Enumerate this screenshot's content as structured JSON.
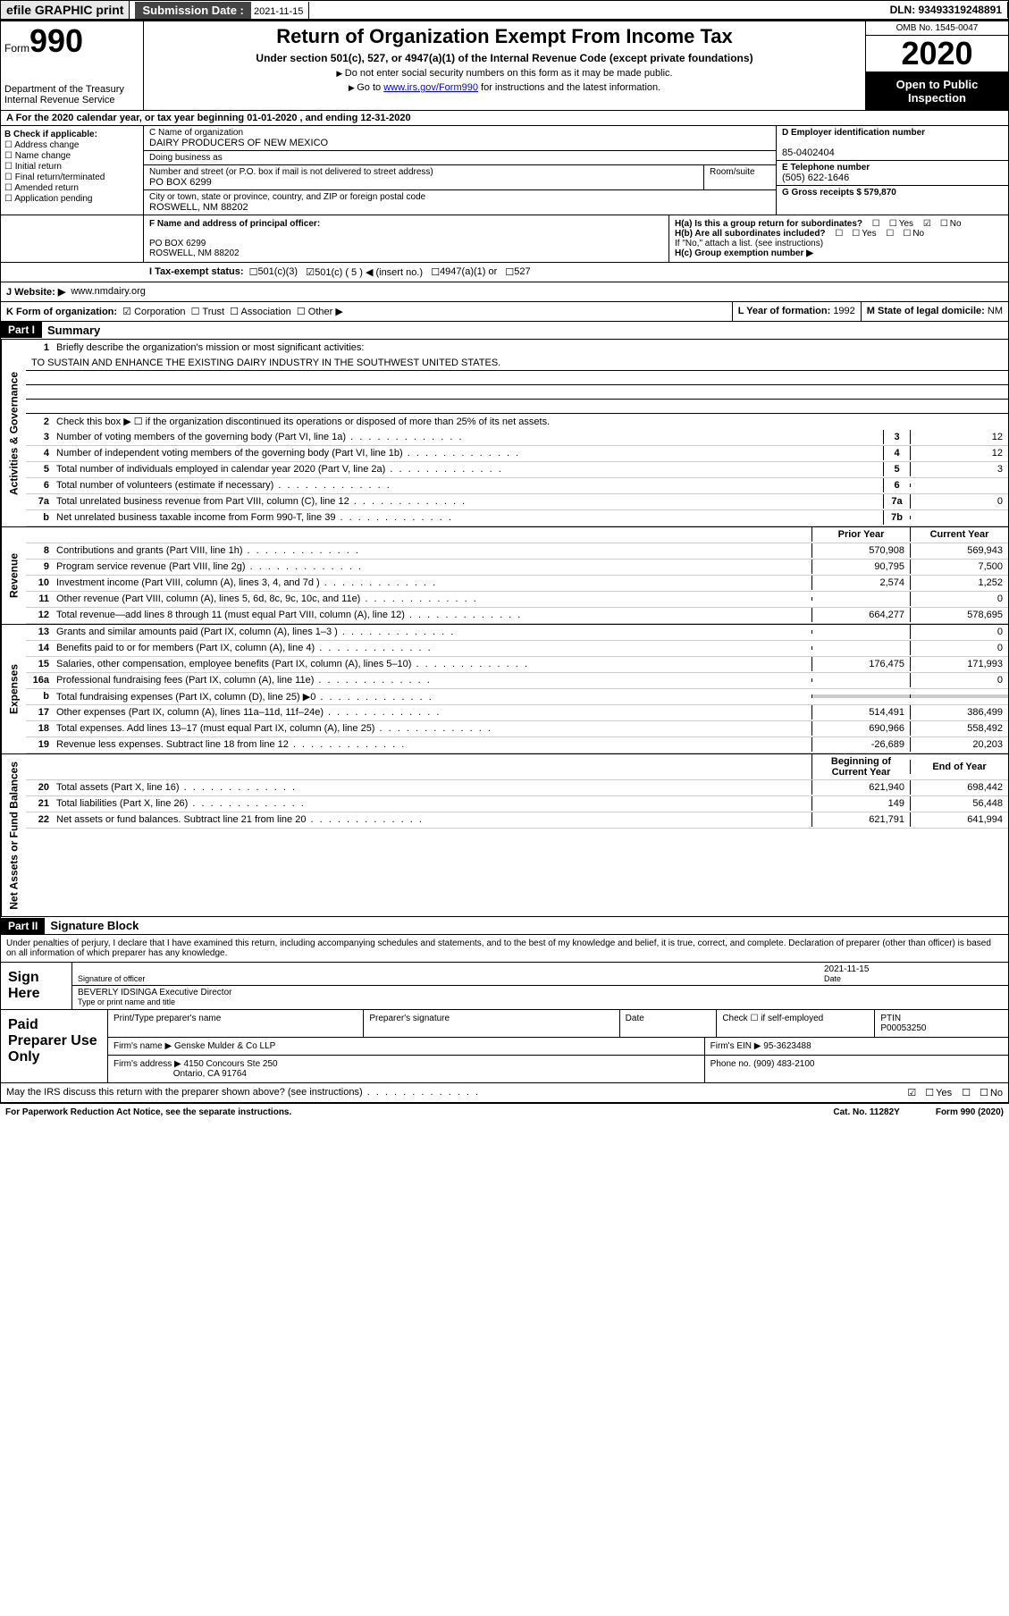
{
  "top": {
    "efile": "efile GRAPHIC print",
    "sub_label": "Submission Date :",
    "sub_date": "2021-11-15",
    "dln": "DLN: 93493319248891"
  },
  "header": {
    "form_word": "Form",
    "form_no": "990",
    "dept": "Department of the Treasury\nInternal Revenue Service",
    "title": "Return of Organization Exempt From Income Tax",
    "subtitle": "Under section 501(c), 527, or 4947(a)(1) of the Internal Revenue Code (except private foundations)",
    "hint1": "Do not enter social security numbers on this form as it may be made public.",
    "hint2_pre": "Go to ",
    "hint2_link": "www.irs.gov/Form990",
    "hint2_post": " for instructions and the latest information.",
    "omb": "OMB No. 1545-0047",
    "year": "2020",
    "open": "Open to Public Inspection"
  },
  "rowA": "A For the 2020 calendar year, or tax year beginning 01-01-2020   , and ending 12-31-2020",
  "B": {
    "label": "B Check if applicable:",
    "opts": [
      "Address change",
      "Name change",
      "Initial return",
      "Final return/terminated",
      "Amended return",
      "Application pending"
    ]
  },
  "C": {
    "name_label": "C Name of organization",
    "name": "DAIRY PRODUCERS OF NEW MEXICO",
    "dba_label": "Doing business as",
    "dba": "",
    "street_label": "Number and street (or P.O. box if mail is not delivered to street address)",
    "room_label": "Room/suite",
    "street": "PO BOX 6299",
    "city_label": "City or town, state or province, country, and ZIP or foreign postal code",
    "city": "ROSWELL, NM  88202"
  },
  "D": {
    "label": "D Employer identification number",
    "val": "85-0402404"
  },
  "E": {
    "label": "E Telephone number",
    "val": "(505) 622-1646"
  },
  "G": {
    "label": "G Gross receipts $",
    "val": "579,870"
  },
  "F": {
    "label": "F Name and address of principal officer:",
    "line1": "PO BOX 6299",
    "line2": "ROSWELL, NM  88202"
  },
  "H": {
    "a": "H(a)  Is this a group return for subordinates?",
    "b": "H(b)  Are all subordinates included?",
    "b_note": "If \"No,\" attach a list. (see instructions)",
    "c": "H(c)  Group exemption number ▶",
    "yes": "Yes",
    "no": "No"
  },
  "I": {
    "label": "I Tax-exempt status:",
    "o1": "501(c)(3)",
    "o2": "501(c) ( 5 ) ◀ (insert no.)",
    "o3": "4947(a)(1) or",
    "o4": "527"
  },
  "J": {
    "label": "J  Website: ▶",
    "val": "www.nmdairy.org"
  },
  "K": {
    "label": "K Form of organization:",
    "o1": "Corporation",
    "o2": "Trust",
    "o3": "Association",
    "o4": "Other ▶"
  },
  "L": {
    "label": "L Year of formation:",
    "val": "1992"
  },
  "M": {
    "label": "M State of legal domicile:",
    "val": "NM"
  },
  "partI": {
    "hdr": "Part I",
    "title": "Summary"
  },
  "gov": {
    "tab": "Activities & Governance",
    "l1": "Briefly describe the organization's mission or most significant activities:",
    "mission": "TO SUSTAIN AND ENHANCE THE EXISTING DAIRY INDUSTRY IN THE SOUTHWEST UNITED STATES.",
    "l2": "Check this box ▶ ☐  if the organization discontinued its operations or disposed of more than 25% of its net assets.",
    "lines": [
      {
        "n": "3",
        "t": "Number of voting members of the governing body (Part VI, line 1a)",
        "b": "3",
        "v": "12"
      },
      {
        "n": "4",
        "t": "Number of independent voting members of the governing body (Part VI, line 1b)",
        "b": "4",
        "v": "12"
      },
      {
        "n": "5",
        "t": "Total number of individuals employed in calendar year 2020 (Part V, line 2a)",
        "b": "5",
        "v": "3"
      },
      {
        "n": "6",
        "t": "Total number of volunteers (estimate if necessary)",
        "b": "6",
        "v": ""
      },
      {
        "n": "7a",
        "t": "Total unrelated business revenue from Part VIII, column (C), line 12",
        "b": "7a",
        "v": "0"
      },
      {
        "n": "b",
        "t": "Net unrelated business taxable income from Form 990-T, line 39",
        "b": "7b",
        "v": ""
      }
    ]
  },
  "rev": {
    "tab": "Revenue",
    "hdr_prior": "Prior Year",
    "hdr_curr": "Current Year",
    "lines": [
      {
        "n": "8",
        "t": "Contributions and grants (Part VIII, line 1h)",
        "p": "570,908",
        "c": "569,943"
      },
      {
        "n": "9",
        "t": "Program service revenue (Part VIII, line 2g)",
        "p": "90,795",
        "c": "7,500"
      },
      {
        "n": "10",
        "t": "Investment income (Part VIII, column (A), lines 3, 4, and 7d )",
        "p": "2,574",
        "c": "1,252"
      },
      {
        "n": "11",
        "t": "Other revenue (Part VIII, column (A), lines 5, 6d, 8c, 9c, 10c, and 11e)",
        "p": "",
        "c": "0"
      },
      {
        "n": "12",
        "t": "Total revenue—add lines 8 through 11 (must equal Part VIII, column (A), line 12)",
        "p": "664,277",
        "c": "578,695"
      }
    ]
  },
  "exp": {
    "tab": "Expenses",
    "lines": [
      {
        "n": "13",
        "t": "Grants and similar amounts paid (Part IX, column (A), lines 1–3 )",
        "p": "",
        "c": "0"
      },
      {
        "n": "14",
        "t": "Benefits paid to or for members (Part IX, column (A), line 4)",
        "p": "",
        "c": "0"
      },
      {
        "n": "15",
        "t": "Salaries, other compensation, employee benefits (Part IX, column (A), lines 5–10)",
        "p": "176,475",
        "c": "171,993"
      },
      {
        "n": "16a",
        "t": "Professional fundraising fees (Part IX, column (A), line 11e)",
        "p": "",
        "c": "0"
      },
      {
        "n": "b",
        "t": "Total fundraising expenses (Part IX, column (D), line 25) ▶0",
        "p": "shade",
        "c": "shade"
      },
      {
        "n": "17",
        "t": "Other expenses (Part IX, column (A), lines 11a–11d, 11f–24e)",
        "p": "514,491",
        "c": "386,499"
      },
      {
        "n": "18",
        "t": "Total expenses. Add lines 13–17 (must equal Part IX, column (A), line 25)",
        "p": "690,966",
        "c": "558,492"
      },
      {
        "n": "19",
        "t": "Revenue less expenses. Subtract line 18 from line 12",
        "p": "-26,689",
        "c": "20,203"
      }
    ]
  },
  "net": {
    "tab": "Net Assets or Fund Balances",
    "hdr_beg": "Beginning of Current Year",
    "hdr_end": "End of Year",
    "lines": [
      {
        "n": "20",
        "t": "Total assets (Part X, line 16)",
        "p": "621,940",
        "c": "698,442"
      },
      {
        "n": "21",
        "t": "Total liabilities (Part X, line 26)",
        "p": "149",
        "c": "56,448"
      },
      {
        "n": "22",
        "t": "Net assets or fund balances. Subtract line 21 from line 20",
        "p": "621,791",
        "c": "641,994"
      }
    ]
  },
  "partII": {
    "hdr": "Part II",
    "title": "Signature Block"
  },
  "sig": {
    "decl": "Under penalties of perjury, I declare that I have examined this return, including accompanying schedules and statements, and to the best of my knowledge and belief, it is true, correct, and complete. Declaration of preparer (other than officer) is based on all information of which preparer has any knowledge.",
    "here": "Sign Here",
    "officer": "Signature of officer",
    "date_label": "Date",
    "date": "2021-11-15",
    "name": "BEVERLY IDSINGA  Executive Director",
    "type_label": "Type or print name and title"
  },
  "prep": {
    "label": "Paid Preparer Use Only",
    "h1": "Print/Type preparer's name",
    "h2": "Preparer's signature",
    "h3": "Date",
    "h4": "Check ☐ if self-employed",
    "h5": "PTIN",
    "ptin": "P00053250",
    "firm_label": "Firm's name    ▶",
    "firm": "Genske Mulder & Co LLP",
    "ein_label": "Firm's EIN ▶",
    "ein": "95-3623488",
    "addr_label": "Firm's address ▶",
    "addr1": "4150 Concours Ste 250",
    "addr2": "Ontario, CA  91764",
    "phone_label": "Phone no.",
    "phone": "(909) 483-2100"
  },
  "discuss": "May the IRS discuss this return with the preparer shown above? (see instructions)",
  "footer": {
    "l": "For Paperwork Reduction Act Notice, see the separate instructions.",
    "m": "Cat. No. 11282Y",
    "r": "Form 990 (2020)"
  }
}
